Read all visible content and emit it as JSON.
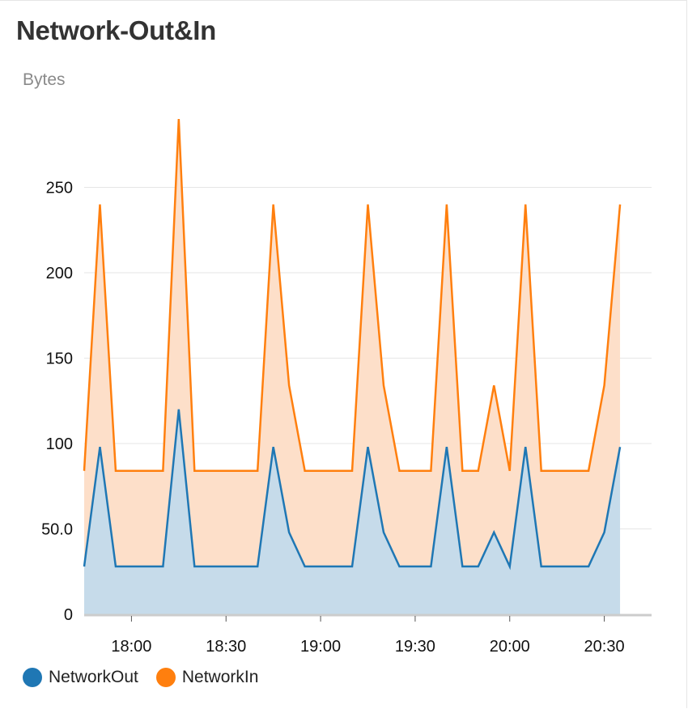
{
  "header": {
    "title": "Network-Out&In"
  },
  "chart_data": {
    "type": "area",
    "title": "Network-Out&In",
    "ylabel": "Bytes",
    "xlabel": "",
    "ylim": [
      0,
      300
    ],
    "yticks": [
      0,
      50,
      100,
      150,
      200,
      250
    ],
    "ytick_labels": [
      "0",
      "50.0",
      "100",
      "150",
      "200",
      "250"
    ],
    "xlim": [
      "17:45",
      "20:45"
    ],
    "xticks": [
      "18:00",
      "18:30",
      "19:00",
      "19:30",
      "20:00",
      "20:30"
    ],
    "grid": true,
    "stacked": true,
    "legend_placement": "bottom-left",
    "x": [
      "17:45",
      "17:50",
      "17:55",
      "18:00",
      "18:05",
      "18:10",
      "18:15",
      "18:20",
      "18:25",
      "18:30",
      "18:35",
      "18:40",
      "18:45",
      "18:50",
      "18:55",
      "19:00",
      "19:05",
      "19:10",
      "19:15",
      "19:20",
      "19:25",
      "19:30",
      "19:35",
      "19:40",
      "19:45",
      "19:50",
      "19:55",
      "20:00",
      "20:05",
      "20:10",
      "20:15",
      "20:20",
      "20:25",
      "20:30",
      "20:35"
    ],
    "series": [
      {
        "name": "NetworkOut",
        "color": "#1f77b4",
        "fill": "#c6dbea",
        "values": [
          28,
          98,
          28,
          28,
          28,
          28,
          120,
          28,
          28,
          28,
          28,
          28,
          98,
          48,
          28,
          28,
          28,
          28,
          98,
          48,
          28,
          28,
          28,
          98,
          28,
          28,
          48,
          28,
          98,
          28,
          28,
          28,
          28,
          48,
          98
        ]
      },
      {
        "name": "NetworkIn",
        "color": "#ff7f0e",
        "fill": "#fddfc9",
        "values": [
          56,
          142,
          56,
          56,
          56,
          56,
          170,
          56,
          56,
          56,
          56,
          56,
          142,
          86,
          56,
          56,
          56,
          56,
          142,
          86,
          56,
          56,
          56,
          142,
          56,
          56,
          86,
          56,
          142,
          56,
          56,
          56,
          56,
          86,
          142
        ]
      }
    ]
  },
  "legend": [
    {
      "label": "NetworkOut",
      "color": "#1f77b4"
    },
    {
      "label": "NetworkIn",
      "color": "#ff7f0e"
    }
  ]
}
